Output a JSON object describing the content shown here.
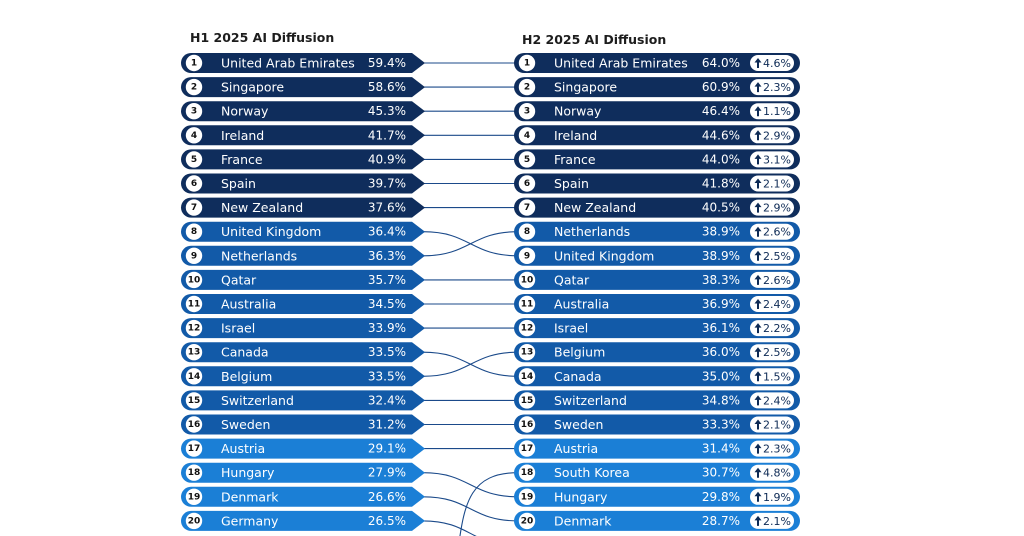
{
  "chart_data": {
    "type": "table",
    "left_title": "H1 2025 AI Diffusion",
    "right_title": "H2 2025 AI Diffusion",
    "h1": [
      {
        "rank": "1",
        "country": "United Arab Emirates",
        "value": "59.4%"
      },
      {
        "rank": "2",
        "country": "Singapore",
        "value": "58.6%"
      },
      {
        "rank": "3",
        "country": "Norway",
        "value": "45.3%"
      },
      {
        "rank": "4",
        "country": "Ireland",
        "value": "41.7%"
      },
      {
        "rank": "5",
        "country": "France",
        "value": "40.9%"
      },
      {
        "rank": "6",
        "country": "Spain",
        "value": "39.7%"
      },
      {
        "rank": "7",
        "country": "New Zealand",
        "value": "37.6%"
      },
      {
        "rank": "8",
        "country": "United Kingdom",
        "value": "36.4%"
      },
      {
        "rank": "9",
        "country": "Netherlands",
        "value": "36.3%"
      },
      {
        "rank": "10",
        "country": "Qatar",
        "value": "35.7%"
      },
      {
        "rank": "11",
        "country": "Australia",
        "value": "34.5%"
      },
      {
        "rank": "12",
        "country": "Israel",
        "value": "33.9%"
      },
      {
        "rank": "13",
        "country": "Canada",
        "value": "33.5%"
      },
      {
        "rank": "14",
        "country": "Belgium",
        "value": "33.5%"
      },
      {
        "rank": "15",
        "country": "Switzerland",
        "value": "32.4%"
      },
      {
        "rank": "16",
        "country": "Sweden",
        "value": "31.2%"
      },
      {
        "rank": "17",
        "country": "Austria",
        "value": "29.1%"
      },
      {
        "rank": "18",
        "country": "Hungary",
        "value": "27.9%"
      },
      {
        "rank": "19",
        "country": "Denmark",
        "value": "26.6%"
      },
      {
        "rank": "20",
        "country": "Germany",
        "value": "26.5%"
      }
    ],
    "h2": [
      {
        "rank": "1",
        "country": "United Arab Emirates",
        "value": "64.0%",
        "change": "4.6%"
      },
      {
        "rank": "2",
        "country": "Singapore",
        "value": "60.9%",
        "change": "2.3%"
      },
      {
        "rank": "3",
        "country": "Norway",
        "value": "46.4%",
        "change": "1.1%"
      },
      {
        "rank": "4",
        "country": "Ireland",
        "value": "44.6%",
        "change": "2.9%"
      },
      {
        "rank": "5",
        "country": "France",
        "value": "44.0%",
        "change": "3.1%"
      },
      {
        "rank": "6",
        "country": "Spain",
        "value": "41.8%",
        "change": "2.1%"
      },
      {
        "rank": "7",
        "country": "New Zealand",
        "value": "40.5%",
        "change": "2.9%"
      },
      {
        "rank": "8",
        "country": "Netherlands",
        "value": "38.9%",
        "change": "2.6%"
      },
      {
        "rank": "9",
        "country": "United Kingdom",
        "value": "38.9%",
        "change": "2.5%"
      },
      {
        "rank": "10",
        "country": "Qatar",
        "value": "38.3%",
        "change": "2.6%"
      },
      {
        "rank": "11",
        "country": "Australia",
        "value": "36.9%",
        "change": "2.4%"
      },
      {
        "rank": "12",
        "country": "Israel",
        "value": "36.1%",
        "change": "2.2%"
      },
      {
        "rank": "13",
        "country": "Belgium",
        "value": "36.0%",
        "change": "2.5%"
      },
      {
        "rank": "14",
        "country": "Canada",
        "value": "35.0%",
        "change": "1.5%"
      },
      {
        "rank": "15",
        "country": "Switzerland",
        "value": "34.8%",
        "change": "2.4%"
      },
      {
        "rank": "16",
        "country": "Sweden",
        "value": "33.3%",
        "change": "2.1%"
      },
      {
        "rank": "17",
        "country": "Austria",
        "value": "31.4%",
        "change": "2.3%"
      },
      {
        "rank": "18",
        "country": "South Korea",
        "value": "30.7%",
        "change": "4.8%"
      },
      {
        "rank": "19",
        "country": "Hungary",
        "value": "29.8%",
        "change": "1.9%"
      },
      {
        "rank": "20",
        "country": "Denmark",
        "value": "28.7%",
        "change": "2.1%"
      }
    ],
    "colors": {
      "tier_dark": "#0f2d5c",
      "tier_mid": "#125aa8",
      "tier_light": "#1b7fd6",
      "connector": "#1b4a8a",
      "delta_text": "#0d2a55"
    }
  }
}
